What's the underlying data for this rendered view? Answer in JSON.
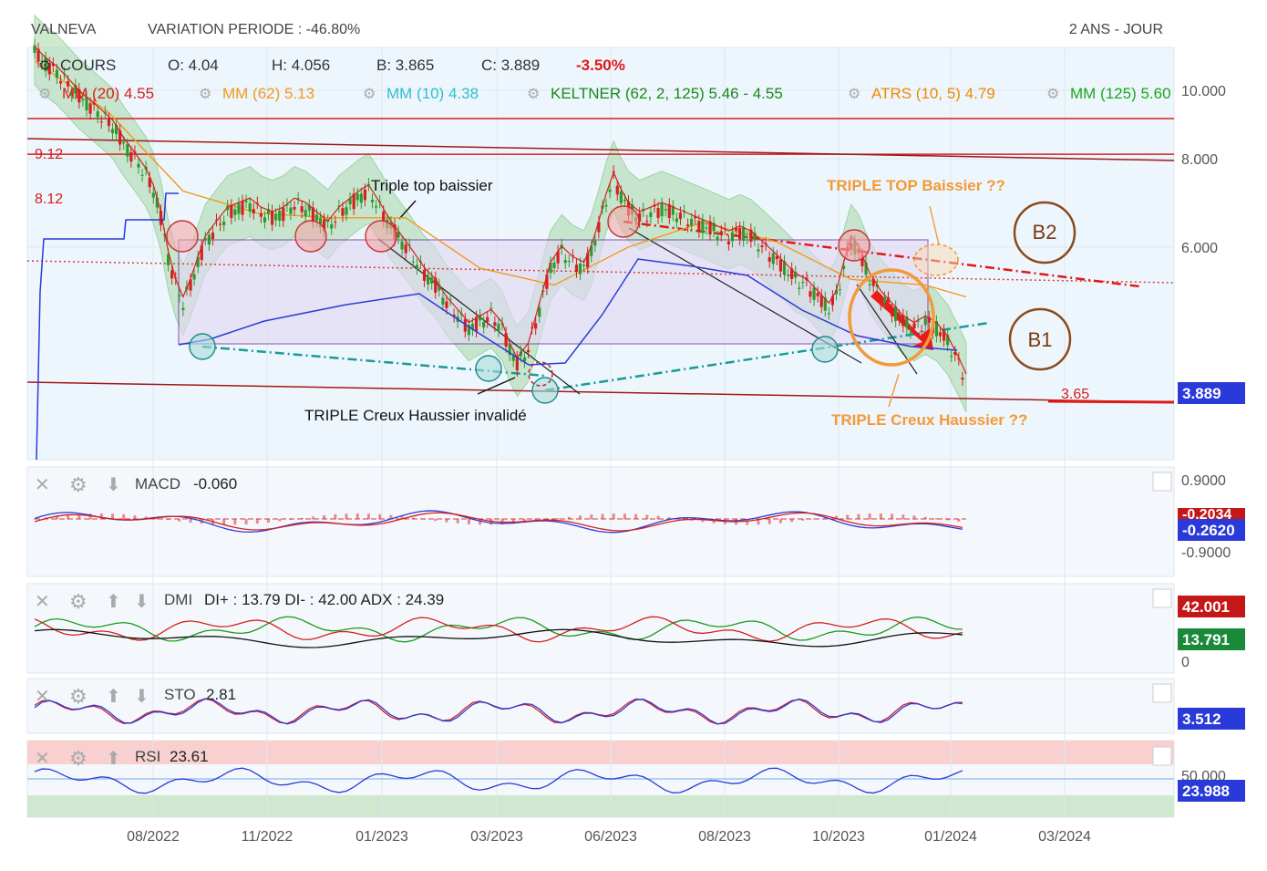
{
  "header": {
    "ticker": "VALNEVA",
    "variation": "VARIATION PERIODE : -46.80%",
    "period": "2 ANS - JOUR"
  },
  "legend": {
    "cours_label": "COURS",
    "open": "O: 4.04",
    "high": "H: 4.056",
    "low": "B: 3.865",
    "close": "C: 3.889",
    "change": "-3.50%",
    "indicators": [
      {
        "label": "MM (20)",
        "value": "4.55",
        "color": "#d62020"
      },
      {
        "label": "MM (62)",
        "value": "5.13",
        "color": "#f09a1a"
      },
      {
        "label": "MM (10)",
        "value": "4.38",
        "color": "#2cc0d0"
      },
      {
        "label": "KELTNER (62, 2, 125)",
        "value": "5.46 - 4.55",
        "color": "#1a8a1a"
      },
      {
        "label": "ATRS (10, 5)",
        "value": "4.79",
        "color": "#f08a00"
      },
      {
        "label": "MM (125)",
        "value": "5.60",
        "color": "#1aa81a"
      }
    ]
  },
  "annotations": {
    "triple_top": "Triple top baissier",
    "triple_creux": "TRIPLE Creux Haussier invalidé",
    "triple_top_q": "TRIPLE TOP Baissier ??",
    "triple_creux_q": "TRIPLE Creux Haussier ??",
    "b1": "B1",
    "b2": "B2",
    "level_912": "9.12",
    "level_812": "8.12",
    "level_365": "3.65"
  },
  "colors": {
    "price_up": "#2e9a2e",
    "price_down": "#d62020",
    "resistance": "#d42020",
    "support_dash": "#1a9a9a",
    "box": "#7a3aa8",
    "orange": "#f39a36",
    "brown": "#8a4a1a",
    "price_badge": "#2a3ad8"
  },
  "panels": {
    "macd": {
      "name": "MACD",
      "value": "-0.060",
      "axis_top": "0.9000",
      "axis_bottom": "-0.9000",
      "badge_red": "-0.2034",
      "badge_blue": "-0.2620"
    },
    "dmi": {
      "name": "DMI",
      "value": "DI+ : 13.79 DI- : 42.00 ADX : 24.39",
      "axis_bottom": "0",
      "badge_red": "42.001",
      "badge_green": "13.791"
    },
    "sto": {
      "name": "STO",
      "value": "2.81",
      "badge": "3.512"
    },
    "rsi": {
      "name": "RSI",
      "value": "23.61",
      "axis_level": "50.000",
      "badge": "23.988"
    }
  },
  "chart_data": {
    "type": "line",
    "title": "VALNEVA",
    "x_ticks": [
      "08/2022",
      "11/2022",
      "01/2023",
      "03/2023",
      "06/2023",
      "08/2023",
      "10/2023",
      "01/2024",
      "03/2024"
    ],
    "y_ticks": [
      "10.000",
      "8.000",
      "6.000"
    ],
    "y_scale": "log",
    "ylim": [
      3.0,
      11.5
    ],
    "last_price": "3.889",
    "horizontal_levels": [
      9.12,
      8.12,
      3.65
    ],
    "series": [
      {
        "name": "COURS",
        "color": "#2e9a2e",
        "points": [
          [
            0,
            11.3
          ],
          [
            3,
            10.9
          ],
          [
            6,
            10.6
          ],
          [
            9,
            10.2
          ],
          [
            12,
            9.8
          ],
          [
            15,
            9.5
          ],
          [
            18,
            9.2
          ],
          [
            21,
            8.9
          ],
          [
            24,
            8.4
          ],
          [
            27,
            8.0
          ],
          [
            30,
            7.6
          ],
          [
            32,
            7.2
          ],
          [
            34,
            6.6
          ],
          [
            36,
            5.8
          ],
          [
            38,
            5.3
          ],
          [
            40,
            5.0
          ],
          [
            42,
            5.3
          ],
          [
            44,
            5.7
          ],
          [
            46,
            6.1
          ],
          [
            48,
            6.3
          ],
          [
            50,
            6.5
          ],
          [
            52,
            6.7
          ],
          [
            55,
            6.8
          ],
          [
            58,
            6.9
          ],
          [
            61,
            6.7
          ],
          [
            64,
            6.6
          ],
          [
            67,
            6.7
          ],
          [
            70,
            6.9
          ],
          [
            73,
            6.8
          ],
          [
            76,
            6.6
          ],
          [
            79,
            6.4
          ],
          [
            82,
            6.7
          ],
          [
            85,
            6.9
          ],
          [
            88,
            7.1
          ],
          [
            90,
            7.2
          ],
          [
            93,
            6.8
          ],
          [
            96,
            6.4
          ],
          [
            99,
            6.1
          ],
          [
            102,
            5.8
          ],
          [
            105,
            5.5
          ],
          [
            108,
            5.3
          ],
          [
            111,
            5.0
          ],
          [
            114,
            4.8
          ],
          [
            117,
            4.6
          ],
          [
            120,
            4.7
          ],
          [
            123,
            4.8
          ],
          [
            126,
            4.6
          ],
          [
            128,
            4.3
          ],
          [
            130,
            4.1
          ],
          [
            133,
            4.3
          ],
          [
            136,
            4.9
          ],
          [
            139,
            5.6
          ],
          [
            142,
            5.9
          ],
          [
            145,
            5.7
          ],
          [
            148,
            5.6
          ],
          [
            150,
            5.9
          ],
          [
            152,
            6.4
          ],
          [
            154,
            7.0
          ],
          [
            156,
            7.5
          ],
          [
            158,
            7.1
          ],
          [
            160,
            6.8
          ],
          [
            163,
            6.6
          ],
          [
            166,
            6.7
          ],
          [
            169,
            6.8
          ],
          [
            172,
            6.7
          ],
          [
            175,
            6.6
          ],
          [
            178,
            6.5
          ],
          [
            181,
            6.4
          ],
          [
            184,
            6.3
          ],
          [
            187,
            6.2
          ],
          [
            190,
            6.3
          ],
          [
            193,
            6.2
          ],
          [
            196,
            6.0
          ],
          [
            199,
            5.8
          ],
          [
            202,
            5.6
          ],
          [
            205,
            5.4
          ],
          [
            208,
            5.3
          ],
          [
            211,
            5.1
          ],
          [
            214,
            4.9
          ],
          [
            216,
            5.1
          ],
          [
            218,
            5.6
          ],
          [
            220,
            6.1
          ],
          [
            222,
            5.9
          ],
          [
            225,
            5.4
          ],
          [
            228,
            5.1
          ],
          [
            231,
            4.9
          ],
          [
            234,
            4.7
          ],
          [
            237,
            4.6
          ],
          [
            240,
            4.7
          ],
          [
            243,
            4.6
          ],
          [
            246,
            4.4
          ],
          [
            249,
            4.1
          ],
          [
            251,
            3.89
          ]
        ]
      },
      {
        "name": "MM (62)",
        "color": "#f09a1a",
        "points": [
          [
            0,
            11.0
          ],
          [
            20,
            9.3
          ],
          [
            40,
            7.2
          ],
          [
            60,
            6.7
          ],
          [
            80,
            6.6
          ],
          [
            100,
            6.6
          ],
          [
            120,
            5.6
          ],
          [
            140,
            5.3
          ],
          [
            160,
            6.0
          ],
          [
            180,
            6.5
          ],
          [
            200,
            6.1
          ],
          [
            220,
            5.4
          ],
          [
            240,
            5.3
          ],
          [
            251,
            5.1
          ]
        ]
      }
    ]
  }
}
